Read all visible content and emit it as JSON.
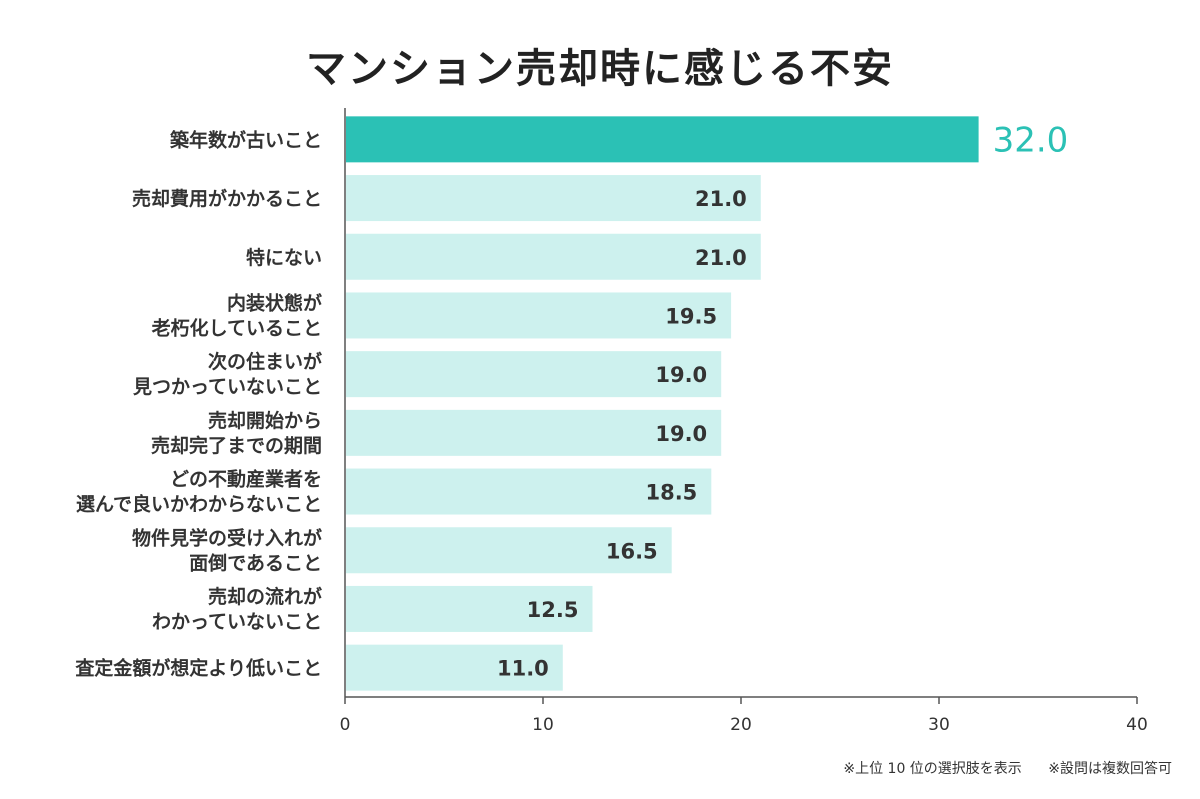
{
  "chart_data": {
    "type": "bar",
    "orientation": "horizontal",
    "title": "マンション売却時に感じる不安",
    "categories": [
      [
        "築年数が古いこと"
      ],
      [
        "売却費用がかかること"
      ],
      [
        "特にない"
      ],
      [
        "内装状態が",
        "老朽化していること"
      ],
      [
        "次の住まいが",
        "見つかっていないこと"
      ],
      [
        "売却開始から",
        "売却完了までの期間"
      ],
      [
        "どの不動産業者を",
        "選んで良いかわからないこと"
      ],
      [
        "物件見学の受け入れが",
        "面倒であること"
      ],
      [
        "売却の流れが",
        "わかっていないこと"
      ],
      [
        "査定金額が想定より低いこと"
      ]
    ],
    "values": [
      32.0,
      21.0,
      21.0,
      19.5,
      19.0,
      19.0,
      18.5,
      16.5,
      12.5,
      11.0
    ],
    "value_labels": [
      "32.0",
      "21.0",
      "21.0",
      "19.5",
      "19.0",
      "19.0",
      "18.5",
      "16.5",
      "12.5",
      "11.0"
    ],
    "xlim": [
      0,
      40
    ],
    "xticks": [
      0,
      10,
      20,
      30,
      40
    ],
    "highlight_index": 0,
    "grid": false,
    "legend": false,
    "colors": {
      "highlight_bar": "#2bc1b5",
      "bar": "#cdf1ee",
      "highlight_label": "#2bc1b5",
      "axis": "#555555"
    }
  },
  "footnotes": [
    "※上位 10 位の選択肢を表示",
    "※設問は複数回答可"
  ]
}
